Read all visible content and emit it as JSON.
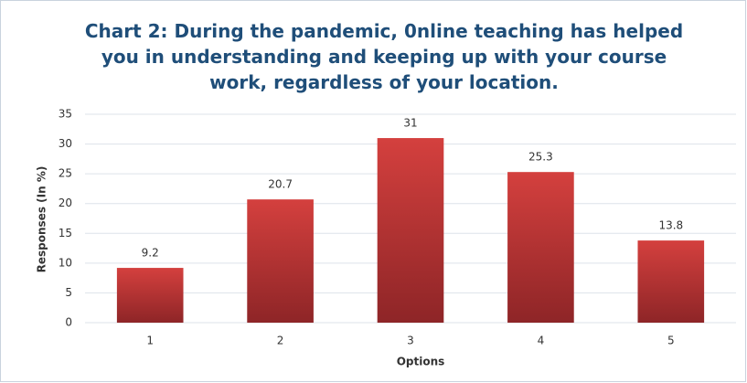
{
  "chart_data": {
    "type": "bar",
    "title": "Chart 2: During the pandemic, 0nline teaching has helped you in understanding and keeping up with your course work, regardless of your location.",
    "x_label": "Options",
    "y_label": "Responses (In %)",
    "categories": [
      "1",
      "2",
      "3",
      "4",
      "5"
    ],
    "values": [
      9.2,
      20.7,
      31,
      25.3,
      13.8
    ],
    "color": "#c0393b",
    "ylim": [
      0,
      35
    ],
    "yticks": [
      0,
      5,
      10,
      15,
      20,
      25,
      30,
      35
    ],
    "grid": true
  }
}
